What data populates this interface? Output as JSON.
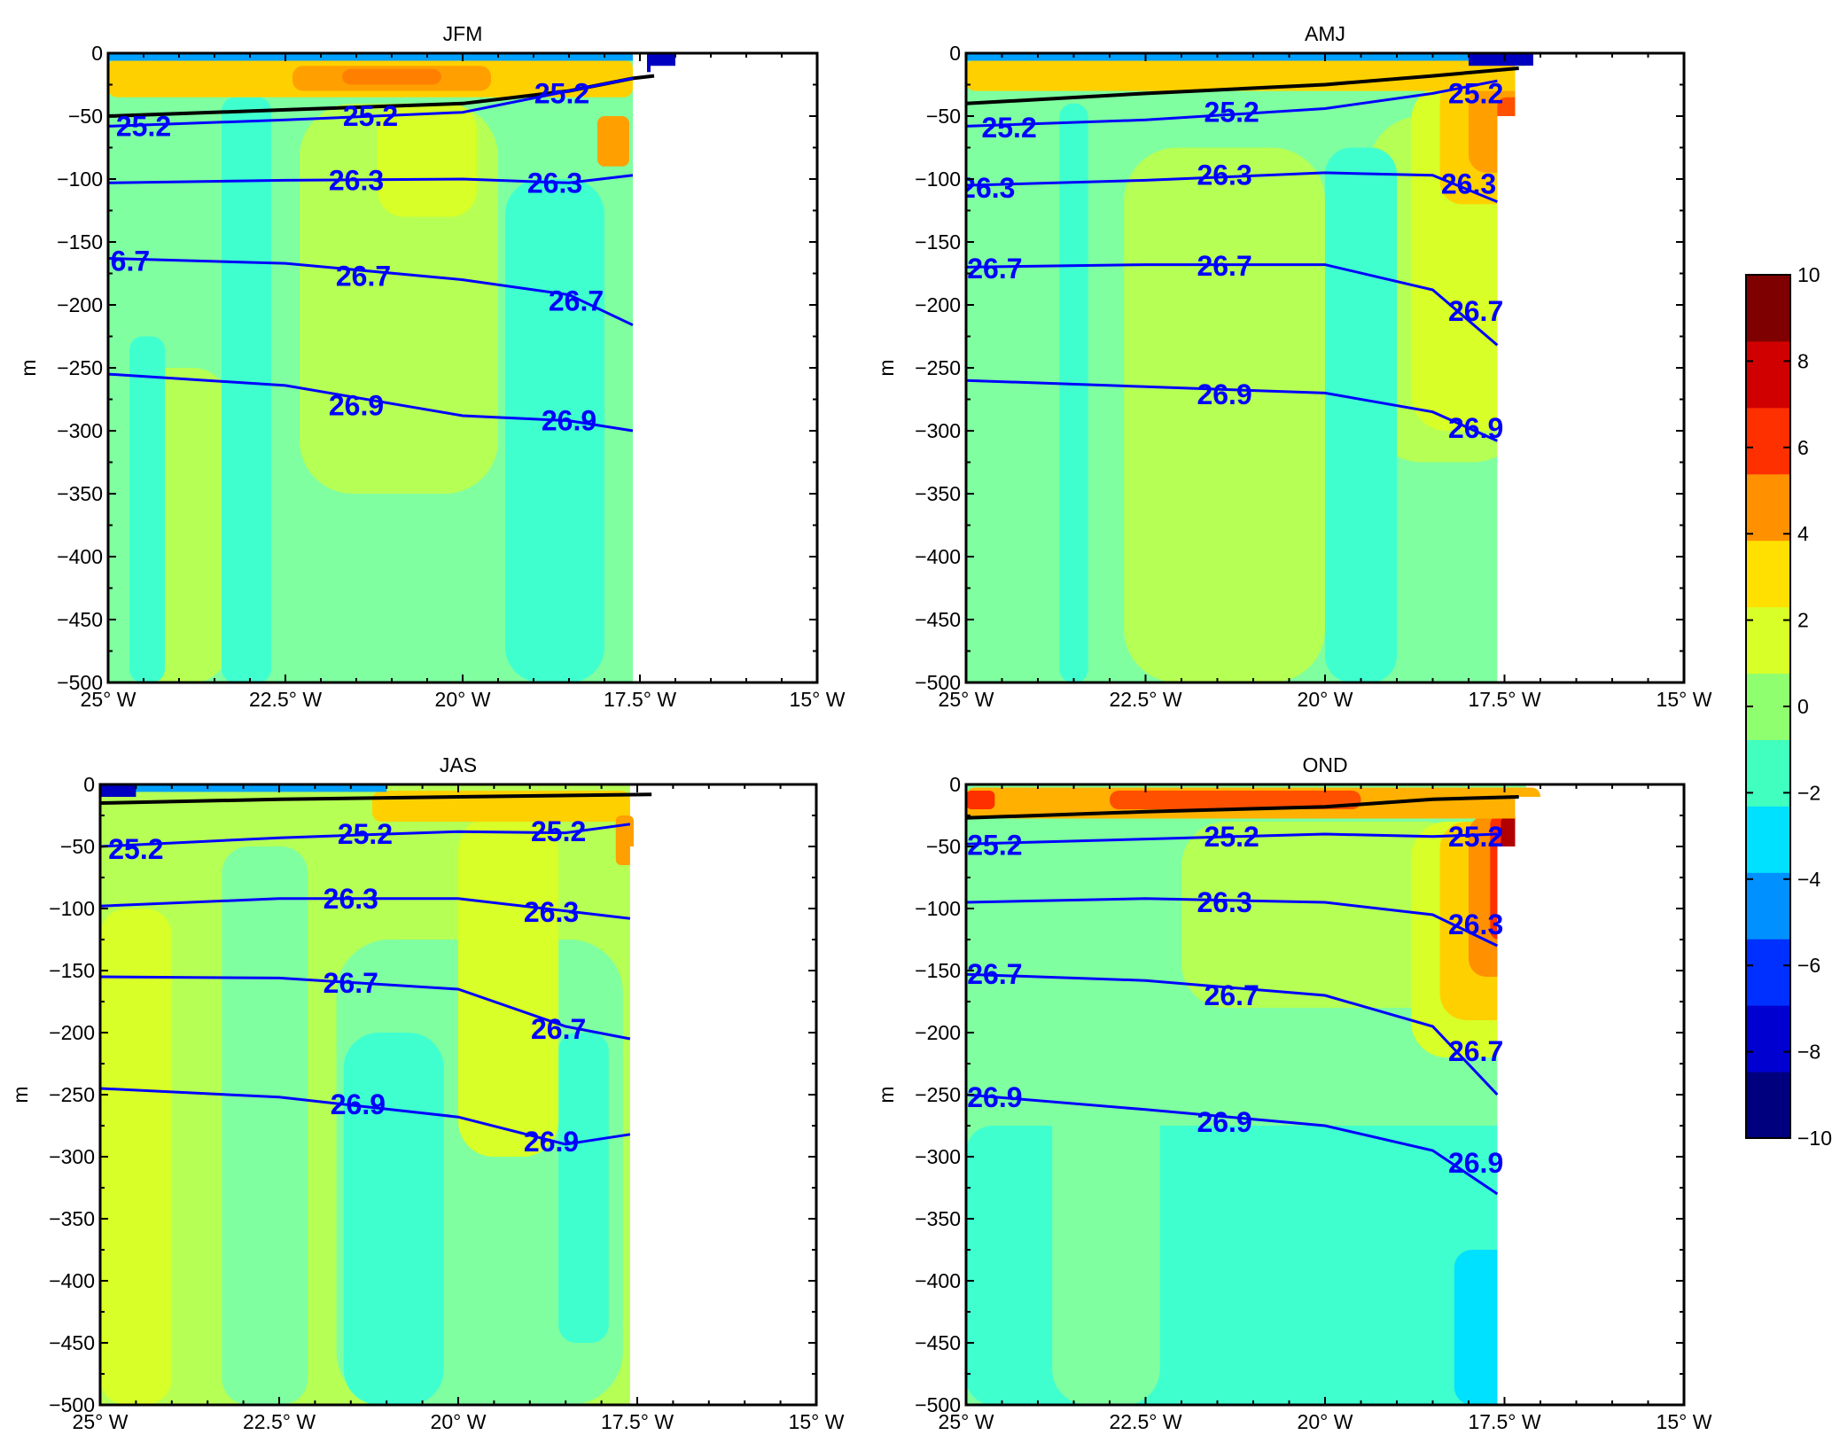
{
  "chart_data": {
    "type": "contour",
    "panels": [
      {
        "title": "JFM",
        "xlabel": "",
        "ylabel": "m",
        "xlim": [
          -25,
          -15
        ],
        "ylim": [
          -500,
          0
        ],
        "xticks": [
          -25,
          -22.5,
          -20,
          -17.5,
          -15
        ],
        "xtick_labels": [
          "25° W",
          "22.5° W",
          "20° W",
          "17.5° W",
          "15° W"
        ],
        "yticks": [
          0,
          -50,
          -100,
          -150,
          -200,
          -250,
          -300,
          -350,
          -400,
          -450,
          -500
        ],
        "ytick_labels": [
          "0",
          "−50",
          "−100",
          "−150",
          "−200",
          "−250",
          "−300",
          "−350",
          "−400",
          "−450",
          "−500"
        ],
        "coast_lon": -17.6,
        "mixed_layer": [
          [
            -25,
            -50
          ],
          [
            -22.5,
            -45
          ],
          [
            -20,
            -40
          ],
          [
            -18.5,
            -30
          ],
          [
            -17.6,
            -20
          ],
          [
            -17.3,
            -18
          ]
        ],
        "isopycnals": [
          {
            "label": "25.2",
            "points": [
              [
                -25,
                -58
              ],
              [
                -22.5,
                -53
              ],
              [
                -20,
                -47
              ],
              [
                -18.5,
                -30
              ],
              [
                -17.6,
                -20
              ]
            ],
            "label_positions": [
              [
                -24.5,
                -58
              ],
              [
                -21.3,
                -50
              ],
              [
                -18.6,
                -32
              ]
            ]
          },
          {
            "label": "26.3",
            "points": [
              [
                -25,
                -103
              ],
              [
                -22.5,
                -101
              ],
              [
                -20,
                -100
              ],
              [
                -18.5,
                -103
              ],
              [
                -17.6,
                -97
              ]
            ],
            "label_positions": [
              [
                -21.5,
                -101
              ],
              [
                -18.7,
                -103
              ]
            ]
          },
          {
            "label": "26.7",
            "points": [
              [
                -25,
                -163
              ],
              [
                -22.5,
                -167
              ],
              [
                -20,
                -180
              ],
              [
                -18.5,
                -192
              ],
              [
                -17.6,
                -216
              ]
            ],
            "label_positions": [
              [
                -24.8,
                -165
              ],
              [
                -21.4,
                -177
              ],
              [
                -18.4,
                -197
              ]
            ]
          },
          {
            "label": "26.9",
            "points": [
              [
                -25,
                -255
              ],
              [
                -22.5,
                -264
              ],
              [
                -20,
                -288
              ],
              [
                -18.5,
                -292
              ],
              [
                -17.6,
                -300
              ]
            ],
            "label_positions": [
              [
                -21.5,
                -280
              ],
              [
                -18.5,
                -292
              ]
            ]
          }
        ]
      },
      {
        "title": "AMJ",
        "xlabel": "",
        "ylabel": "m",
        "xlim": [
          -25,
          -15
        ],
        "ylim": [
          -500,
          0
        ],
        "xticks": [
          -25,
          -22.5,
          -20,
          -17.5,
          -15
        ],
        "xtick_labels": [
          "25° W",
          "22.5° W",
          "20° W",
          "17.5° W",
          "15° W"
        ],
        "yticks": [
          0,
          -50,
          -100,
          -150,
          -200,
          -250,
          -300,
          -350,
          -400,
          -450,
          -500
        ],
        "ytick_labels": [
          "0",
          "−50",
          "−100",
          "−150",
          "−200",
          "−250",
          "−300",
          "−350",
          "−400",
          "−450",
          "−500"
        ],
        "coast_lon": -17.6,
        "mixed_layer": [
          [
            -25,
            -40
          ],
          [
            -22.5,
            -32
          ],
          [
            -20,
            -25
          ],
          [
            -18.5,
            -18
          ],
          [
            -17.3,
            -12
          ]
        ],
        "isopycnals": [
          {
            "label": "25.2",
            "points": [
              [
                -25,
                -58
              ],
              [
                -22.5,
                -53
              ],
              [
                -20,
                -44
              ],
              [
                -18.5,
                -32
              ],
              [
                -17.6,
                -22
              ]
            ],
            "label_positions": [
              [
                -24.4,
                -59
              ],
              [
                -21.3,
                -47
              ],
              [
                -17.9,
                -32
              ]
            ]
          },
          {
            "label": "26.3",
            "points": [
              [
                -25,
                -105
              ],
              [
                -22.5,
                -101
              ],
              [
                -20,
                -95
              ],
              [
                -18.5,
                -97
              ],
              [
                -17.6,
                -118
              ]
            ],
            "label_positions": [
              [
                -24.7,
                -107
              ],
              [
                -21.4,
                -97
              ],
              [
                -18.0,
                -104
              ]
            ]
          },
          {
            "label": "26.7",
            "points": [
              [
                -25,
                -170
              ],
              [
                -22.5,
                -168
              ],
              [
                -20,
                -168
              ],
              [
                -18.5,
                -188
              ],
              [
                -17.6,
                -232
              ]
            ],
            "label_positions": [
              [
                -24.6,
                -171
              ],
              [
                -21.4,
                -169
              ],
              [
                -17.9,
                -205
              ]
            ]
          },
          {
            "label": "26.9",
            "points": [
              [
                -25,
                -260
              ],
              [
                -22.5,
                -265
              ],
              [
                -20,
                -270
              ],
              [
                -18.5,
                -285
              ],
              [
                -17.6,
                -308
              ]
            ],
            "label_positions": [
              [
                -21.4,
                -271
              ],
              [
                -17.9,
                -298
              ]
            ]
          }
        ]
      },
      {
        "title": "JAS",
        "xlabel": "",
        "ylabel": "m",
        "xlim": [
          -25,
          -15
        ],
        "ylim": [
          -500,
          0
        ],
        "xticks": [
          -25,
          -22.5,
          -20,
          -17.5,
          -15
        ],
        "xtick_labels": [
          "25° W",
          "22.5° W",
          "20° W",
          "17.5° W",
          "15° W"
        ],
        "yticks": [
          0,
          -50,
          -100,
          -150,
          -200,
          -250,
          -300,
          -350,
          -400,
          -450,
          -500
        ],
        "ytick_labels": [
          "0",
          "−50",
          "−100",
          "−150",
          "−200",
          "−250",
          "−300",
          "−350",
          "−400",
          "−450",
          "−500"
        ],
        "coast_lon": -17.6,
        "mixed_layer": [
          [
            -25,
            -15
          ],
          [
            -22.5,
            -12
          ],
          [
            -20,
            -10
          ],
          [
            -17.3,
            -8
          ]
        ],
        "isopycnals": [
          {
            "label": "25.2",
            "points": [
              [
                -25,
                -50
              ],
              [
                -22.5,
                -43
              ],
              [
                -20,
                -38
              ],
              [
                -18.5,
                -39
              ],
              [
                -17.6,
                -32
              ]
            ],
            "label_positions": [
              [
                -24.5,
                -52
              ],
              [
                -21.3,
                -40
              ],
              [
                -18.6,
                -38
              ]
            ]
          },
          {
            "label": "26.3",
            "points": [
              [
                -25,
                -98
              ],
              [
                -22.5,
                -92
              ],
              [
                -20,
                -92
              ],
              [
                -18.5,
                -102
              ],
              [
                -17.6,
                -108
              ]
            ],
            "label_positions": [
              [
                -21.5,
                -92
              ],
              [
                -18.7,
                -103
              ]
            ]
          },
          {
            "label": "26.7",
            "points": [
              [
                -25,
                -155
              ],
              [
                -22.5,
                -156
              ],
              [
                -20,
                -165
              ],
              [
                -18.5,
                -195
              ],
              [
                -17.6,
                -205
              ]
            ],
            "label_positions": [
              [
                -21.5,
                -160
              ],
              [
                -18.6,
                -197
              ]
            ]
          },
          {
            "label": "26.9",
            "points": [
              [
                -25,
                -245
              ],
              [
                -22.5,
                -252
              ],
              [
                -20,
                -268
              ],
              [
                -18.5,
                -290
              ],
              [
                -17.6,
                -282
              ]
            ],
            "label_positions": [
              [
                -21.4,
                -258
              ],
              [
                -18.7,
                -288
              ]
            ]
          }
        ]
      },
      {
        "title": "OND",
        "xlabel": "",
        "ylabel": "m",
        "xlim": [
          -25,
          -15
        ],
        "ylim": [
          -500,
          0
        ],
        "xticks": [
          -25,
          -22.5,
          -20,
          -17.5,
          -15
        ],
        "xtick_labels": [
          "25° W",
          "22.5° W",
          "20° W",
          "17.5° W",
          "15° W"
        ],
        "yticks": [
          0,
          -50,
          -100,
          -150,
          -200,
          -250,
          -300,
          -350,
          -400,
          -450,
          -500
        ],
        "ytick_labels": [
          "0",
          "−50",
          "−100",
          "−150",
          "−200",
          "−250",
          "−300",
          "−350",
          "−400",
          "−450",
          "−500"
        ],
        "coast_lon": -17.6,
        "mixed_layer": [
          [
            -25,
            -27
          ],
          [
            -22.5,
            -22
          ],
          [
            -20,
            -18
          ],
          [
            -18.5,
            -12
          ],
          [
            -17.3,
            -10
          ]
        ],
        "isopycnals": [
          {
            "label": "25.2",
            "points": [
              [
                -25,
                -48
              ],
              [
                -22.5,
                -44
              ],
              [
                -20,
                -40
              ],
              [
                -18.5,
                -42
              ],
              [
                -17.6,
                -40
              ]
            ],
            "label_positions": [
              [
                -24.6,
                -49
              ],
              [
                -21.3,
                -42
              ],
              [
                -17.9,
                -42
              ]
            ]
          },
          {
            "label": "26.3",
            "points": [
              [
                -25,
                -95
              ],
              [
                -22.5,
                -92
              ],
              [
                -20,
                -95
              ],
              [
                -18.5,
                -105
              ],
              [
                -17.6,
                -130
              ]
            ],
            "label_positions": [
              [
                -21.4,
                -95
              ],
              [
                -17.9,
                -113
              ]
            ]
          },
          {
            "label": "26.7",
            "points": [
              [
                -25,
                -153
              ],
              [
                -22.5,
                -158
              ],
              [
                -20,
                -170
              ],
              [
                -18.5,
                -195
              ],
              [
                -17.6,
                -250
              ]
            ],
            "label_positions": [
              [
                -24.6,
                -153
              ],
              [
                -21.3,
                -170
              ],
              [
                -17.9,
                -215
              ]
            ]
          },
          {
            "label": "26.9",
            "points": [
              [
                -25,
                -250
              ],
              [
                -22.5,
                -262
              ],
              [
                -20,
                -275
              ],
              [
                -18.5,
                -295
              ],
              [
                -17.6,
                -330
              ]
            ],
            "label_positions": [
              [
                -24.6,
                -252
              ],
              [
                -21.4,
                -272
              ],
              [
                -17.9,
                -305
              ]
            ]
          }
        ]
      }
    ],
    "colorbar": {
      "range": [
        -10,
        10
      ],
      "ticks": [
        10,
        8,
        6,
        4,
        2,
        0,
        -2,
        -4,
        -6,
        -8,
        -10
      ],
      "tick_labels": [
        "10",
        "8",
        "6",
        "4",
        "2",
        "0",
        "−2",
        "−4",
        "−6",
        "−8",
        "−10"
      ],
      "colors": [
        "#00007f",
        "#0000d0",
        "#0030ff",
        "#0090ff",
        "#00e0ff",
        "#40ffbf",
        "#90ff6f",
        "#d8ff27",
        "#ffe000",
        "#ff9000",
        "#ff3000",
        "#d00000",
        "#7f0000"
      ]
    },
    "contour_line_color": "#0000ff",
    "mixed_layer_color": "#000000"
  }
}
